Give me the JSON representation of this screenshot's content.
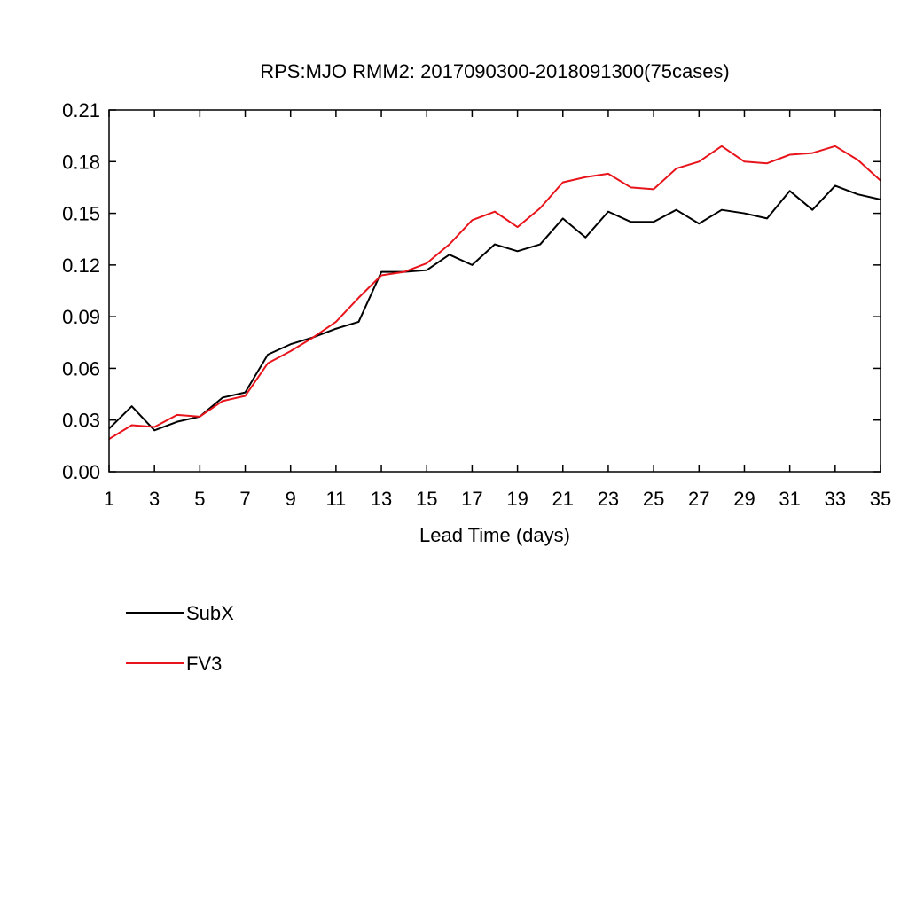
{
  "chart_data": {
    "type": "line",
    "title": "RPS:MJO RMM2: 2017090300-2018091300(75cases)",
    "xlabel": "Lead Time (days)",
    "ylabel": "",
    "xlim": [
      1,
      35
    ],
    "ylim": [
      0,
      0.21
    ],
    "xticks": [
      "1",
      "3",
      "5",
      "7",
      "9",
      "11",
      "13",
      "15",
      "17",
      "19",
      "21",
      "23",
      "25",
      "27",
      "29",
      "31",
      "33",
      "35"
    ],
    "yticks": [
      "0.00",
      "0.03",
      "0.06",
      "0.09",
      "0.12",
      "0.15",
      "0.18",
      "0.21"
    ],
    "grid": false,
    "legend_position": "bottom-left",
    "x": [
      1,
      2,
      3,
      4,
      5,
      6,
      7,
      8,
      9,
      10,
      11,
      12,
      13,
      14,
      15,
      16,
      17,
      18,
      19,
      20,
      21,
      22,
      23,
      24,
      25,
      26,
      27,
      28,
      29,
      30,
      31,
      32,
      33,
      34,
      35
    ],
    "series": [
      {
        "name": "SubX",
        "color": "#000000",
        "values": [
          0.025,
          0.038,
          0.024,
          0.029,
          0.032,
          0.043,
          0.046,
          0.068,
          0.074,
          0.078,
          0.083,
          0.087,
          0.116,
          0.116,
          0.117,
          0.126,
          0.12,
          0.132,
          0.128,
          0.132,
          0.147,
          0.136,
          0.151,
          0.145,
          0.145,
          0.152,
          0.144,
          0.152,
          0.15,
          0.147,
          0.163,
          0.152,
          0.166,
          0.161,
          0.158
        ]
      },
      {
        "name": "FV3",
        "color": "#e8141b",
        "values": [
          0.019,
          0.027,
          0.026,
          0.033,
          0.032,
          0.041,
          0.044,
          0.063,
          0.07,
          0.078,
          0.087,
          0.101,
          0.114,
          0.116,
          0.121,
          0.132,
          0.146,
          0.151,
          0.142,
          0.153,
          0.168,
          0.171,
          0.173,
          0.165,
          0.164,
          0.176,
          0.18,
          0.189,
          0.18,
          0.179,
          0.184,
          0.185,
          0.189,
          0.181,
          0.169
        ]
      }
    ]
  }
}
